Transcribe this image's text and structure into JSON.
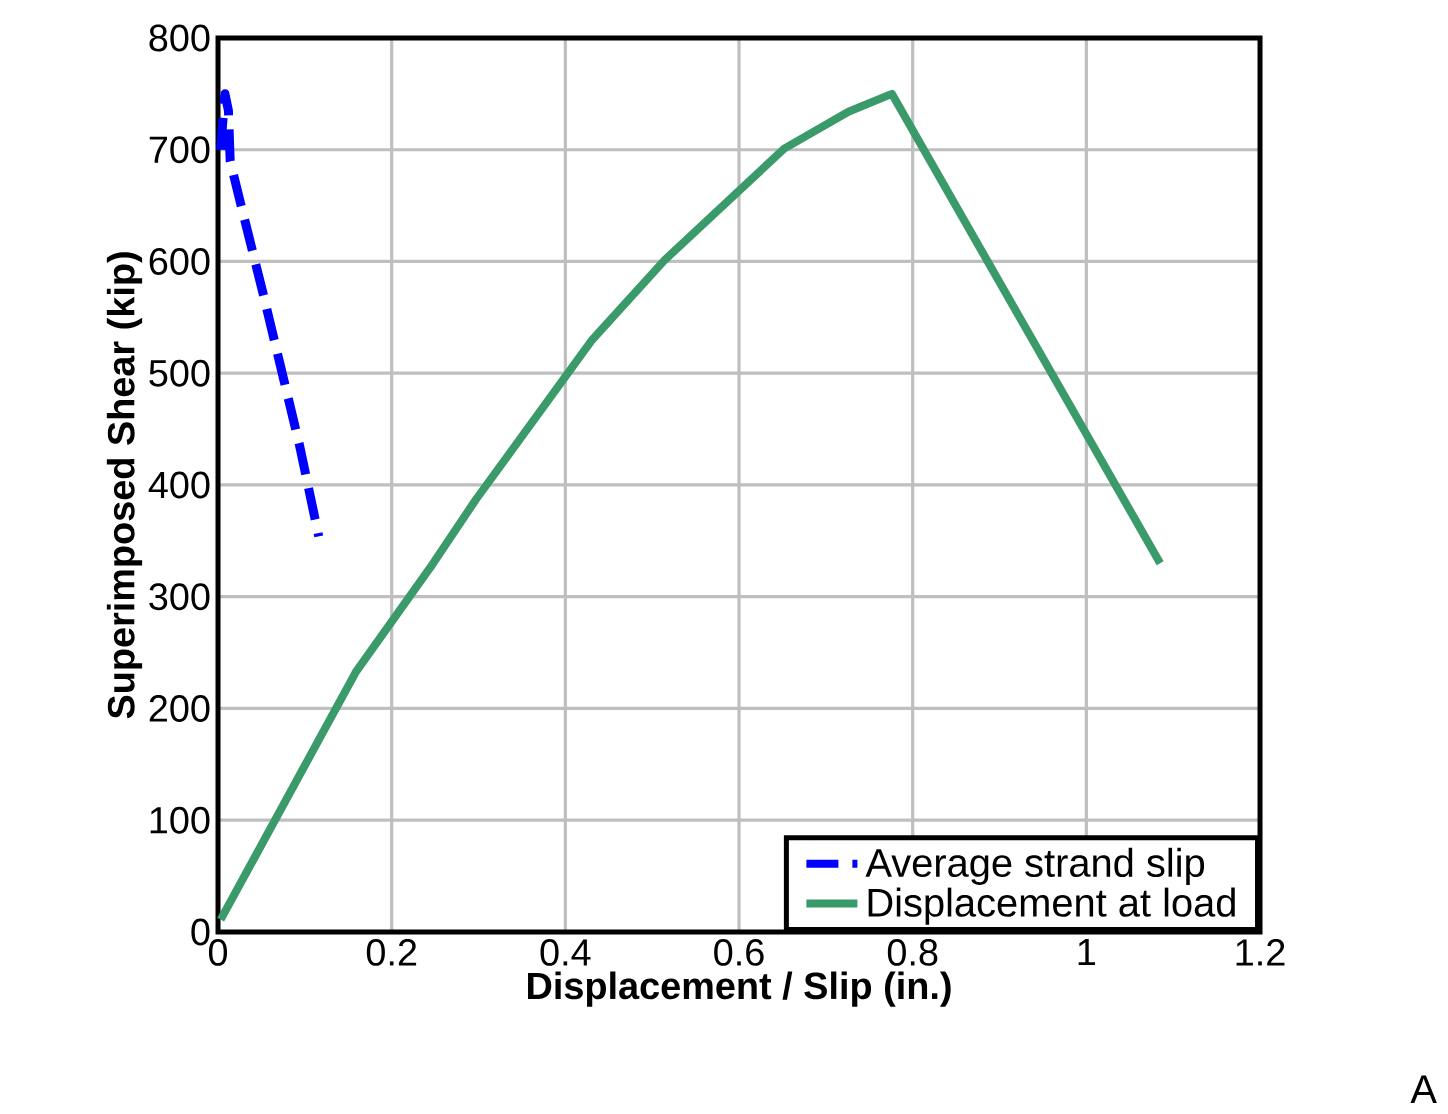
{
  "chart_data": {
    "type": "line",
    "xlabel": "Displacement / Slip (in.)",
    "ylabel": "Superimposed Shear (kip)",
    "xlim": [
      0,
      1.2
    ],
    "ylim": [
      0,
      800
    ],
    "xticks": [
      0,
      0.2,
      0.4,
      0.6,
      0.8,
      1,
      1.2
    ],
    "yticks": [
      0,
      100,
      200,
      300,
      400,
      500,
      600,
      700,
      800
    ],
    "grid": true,
    "legend": "bottom right",
    "series": [
      {
        "name": "Average strand slip",
        "color": "#0000ff",
        "line_style": "dashed",
        "x": [
          0.003,
          0.008,
          0.012,
          0.014,
          0.025,
          0.052,
          0.094,
          0.116
        ],
        "values": [
          700,
          750,
          735,
          690,
          655,
          571,
          435,
          354
        ]
      },
      {
        "name": "Displacement at load",
        "color": "#3a9a6a",
        "line_style": "solid",
        "x": [
          0.003,
          0.159,
          0.247,
          0.297,
          0.431,
          0.514,
          0.652,
          0.726,
          0.776,
          1.085
        ],
        "values": [
          11,
          233,
          329,
          387,
          530,
          601,
          701,
          734,
          750,
          330
        ]
      }
    ],
    "annotations": [
      "A"
    ]
  }
}
